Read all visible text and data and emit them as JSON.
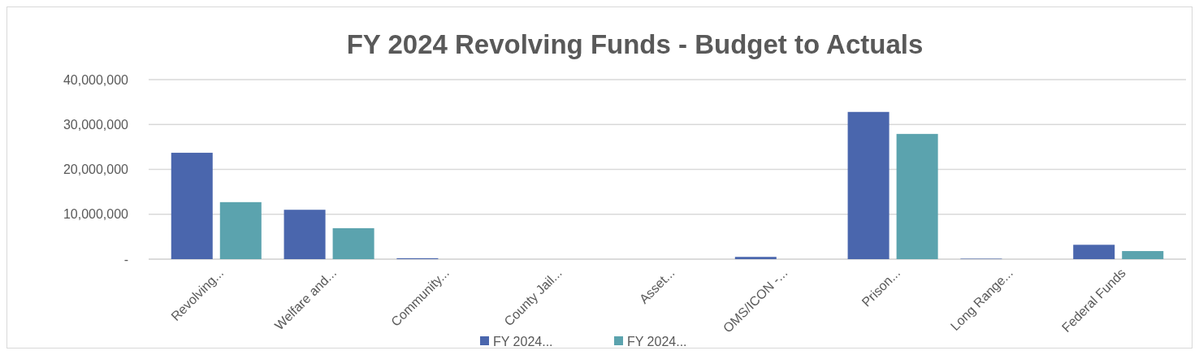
{
  "chart_data": {
    "type": "bar",
    "title": "FY 2024 Revolving Funds - Budget to Actuals",
    "categories": [
      "Revolving...",
      "Welfare and...",
      "Community...",
      "County Jail...",
      "Asset...",
      "OMS/ICON -...",
      "Prison...",
      "Long Range...",
      "Federal Funds"
    ],
    "series": [
      {
        "name": "FY 2024...",
        "color": "#4a66ad",
        "values": [
          23700000,
          11000000,
          200000,
          0,
          0,
          500000,
          32800000,
          100000,
          3200000
        ]
      },
      {
        "name": "FY 2024...",
        "color": "#5ba3ae",
        "values": [
          12700000,
          6900000,
          0,
          0,
          0,
          0,
          27900000,
          0,
          1800000
        ]
      }
    ],
    "ylim": [
      0,
      40000000
    ],
    "yticks": [
      {
        "value": 0,
        "label": "-"
      },
      {
        "value": 10000000,
        "label": "10,000,000"
      },
      {
        "value": 20000000,
        "label": "20,000,000"
      },
      {
        "value": 30000000,
        "label": "30,000,000"
      },
      {
        "value": 40000000,
        "label": "40,000,000"
      }
    ],
    "grid": "y",
    "legend": "bottom"
  }
}
